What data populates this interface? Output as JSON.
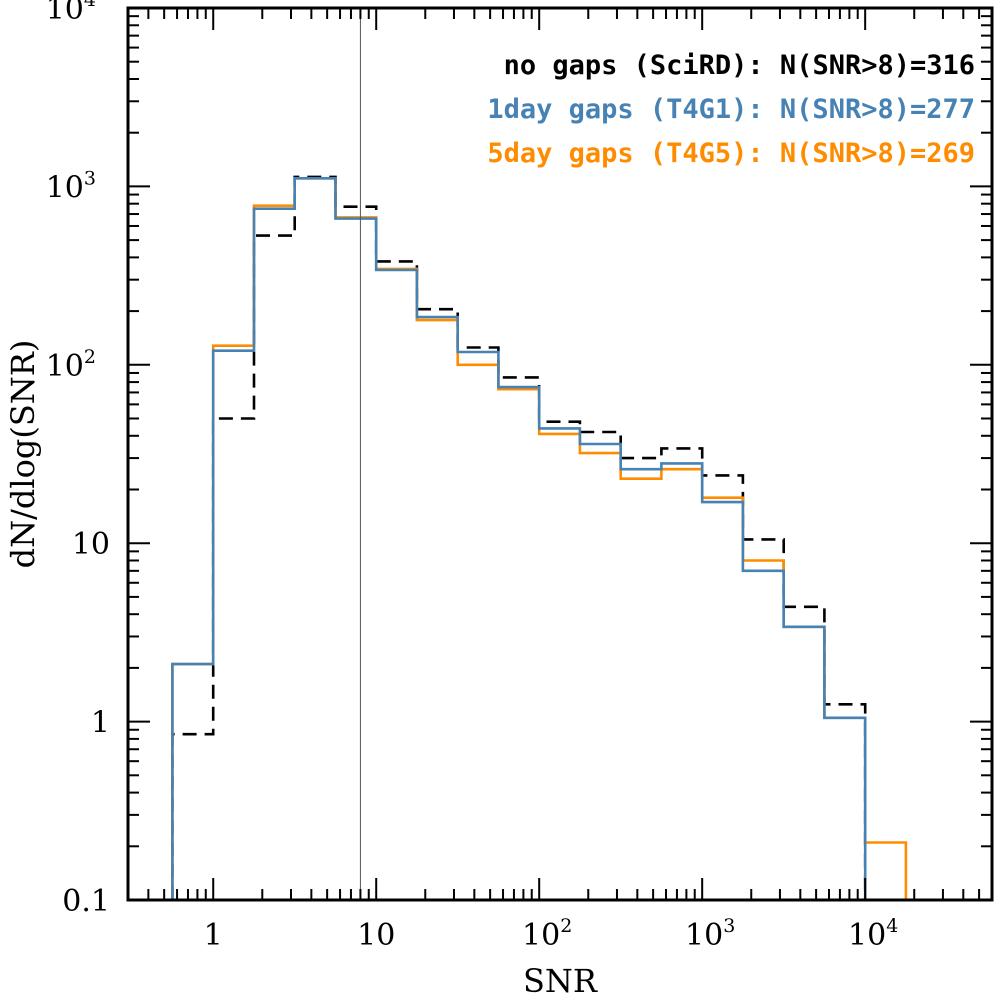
{
  "chart_data": {
    "type": "histogram-step",
    "xlabel": "SNR",
    "ylabel": "dN/dlog(SNR)",
    "xscale": "log",
    "yscale": "log",
    "xlim": [
      0.3,
      60000
    ],
    "ylim": [
      0.1,
      10000
    ],
    "x_ticks": [
      {
        "value": 1,
        "base": "1",
        "exp": ""
      },
      {
        "value": 10,
        "base": "10",
        "exp": ""
      },
      {
        "value": 100,
        "base": "10",
        "exp": "2"
      },
      {
        "value": 1000,
        "base": "10",
        "exp": "3"
      },
      {
        "value": 10000,
        "base": "10",
        "exp": "4"
      }
    ],
    "y_ticks": [
      {
        "value": 0.1,
        "base": "0.1",
        "exp": ""
      },
      {
        "value": 1,
        "base": "1",
        "exp": ""
      },
      {
        "value": 10,
        "base": "10",
        "exp": ""
      },
      {
        "value": 100,
        "base": "10",
        "exp": "2"
      },
      {
        "value": 1000,
        "base": "10",
        "exp": "3"
      },
      {
        "value": 10000,
        "base": "10",
        "exp": "4"
      }
    ],
    "vline": 8,
    "bin_edges": [
      0.562,
      1,
      1.778,
      3.162,
      5.623,
      10,
      17.78,
      31.62,
      56.23,
      100,
      177.8,
      316.2,
      562.3,
      1000,
      1778,
      3162,
      5623,
      10000,
      17780
    ],
    "series": [
      {
        "label": "no gaps (SciRD): N(SNR>8)=316",
        "color": "#000000",
        "dash": "14,8",
        "values": [
          0.85,
          50,
          530,
          1130,
          770,
          380,
          205,
          125,
          85,
          48,
          42,
          30,
          34,
          24,
          10.5,
          4.4,
          1.25,
          0.09
        ]
      },
      {
        "label": "5day gaps (T4G5): N(SNR>8)=269",
        "color": "#ff8c00",
        "dash": "",
        "values": [
          2.1,
          128,
          780,
          1110,
          670,
          345,
          178,
          100,
          73,
          41,
          32,
          23,
          26,
          18,
          8,
          3.4,
          1.05,
          0.21
        ]
      },
      {
        "label": "1day gaps (T4G1): N(SNR>8)=277",
        "color": "#4682b4",
        "dash": "",
        "values": [
          2.1,
          120,
          750,
          1110,
          660,
          340,
          185,
          118,
          75,
          44,
          36,
          26,
          28,
          17,
          7,
          3.4,
          1.05,
          0.09
        ]
      }
    ],
    "legend": {
      "placement": "top-right",
      "entries": [
        {
          "text": "no gaps (SciRD): N(SNR>8)=316",
          "color": "#000000"
        },
        {
          "text": "1day gaps (T4G1): N(SNR>8)=277",
          "color": "#4682b4"
        },
        {
          "text": "5day gaps (T4G5): N(SNR>8)=269",
          "color": "#ff8c00"
        }
      ]
    }
  }
}
